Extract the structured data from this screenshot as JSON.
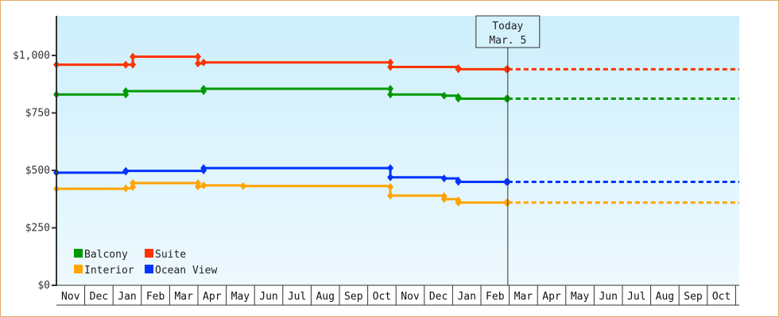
{
  "chart_data": {
    "type": "line",
    "title": "",
    "xlabel": "",
    "ylabel": "",
    "ylim": [
      0,
      1170
    ],
    "y_ticks": [
      {
        "value": 0,
        "label": "$0"
      },
      {
        "value": 250,
        "label": "$250"
      },
      {
        "value": 500,
        "label": "$500"
      },
      {
        "value": 750,
        "label": "$750"
      },
      {
        "value": 1000,
        "label": "$1,000"
      }
    ],
    "x_ticks": [
      "Nov",
      "Dec",
      "Jan",
      "Feb",
      "Mar",
      "Apr",
      "May",
      "Jun",
      "Jul",
      "Aug",
      "Sep",
      "Oct",
      "Nov",
      "Dec",
      "Jan",
      "Feb",
      "Mar",
      "Apr",
      "May",
      "Jun",
      "Jul",
      "Aug",
      "Sep",
      "Oct"
    ],
    "grid": false,
    "legend_position": "lower-left",
    "annotation": {
      "line1": "Today",
      "line2": "Mar. 5",
      "month_index": 16
    },
    "series": [
      {
        "name": "Suite",
        "color": "#ff3300",
        "points": [
          {
            "x": 0.0,
            "y": 960
          },
          {
            "x": 2.45,
            "y": 960
          },
          {
            "x": 2.45,
            "y": 960
          },
          {
            "x": 2.7,
            "y": 960
          },
          {
            "x": 2.7,
            "y": 995
          },
          {
            "x": 5.0,
            "y": 995
          },
          {
            "x": 5.0,
            "y": 965
          },
          {
            "x": 5.2,
            "y": 970
          },
          {
            "x": 11.8,
            "y": 970
          },
          {
            "x": 11.8,
            "y": 950
          },
          {
            "x": 14.2,
            "y": 945
          },
          {
            "x": 14.2,
            "y": 940
          },
          {
            "x": 15.9,
            "y": 940
          }
        ],
        "forecast_value": 940
      },
      {
        "name": "Balcony",
        "color": "#009900",
        "points": [
          {
            "x": 0.0,
            "y": 830
          },
          {
            "x": 2.45,
            "y": 830
          },
          {
            "x": 2.45,
            "y": 845
          },
          {
            "x": 5.2,
            "y": 845
          },
          {
            "x": 5.2,
            "y": 855
          },
          {
            "x": 11.8,
            "y": 855
          },
          {
            "x": 11.8,
            "y": 830
          },
          {
            "x": 13.7,
            "y": 825
          },
          {
            "x": 14.2,
            "y": 820
          },
          {
            "x": 14.2,
            "y": 812
          },
          {
            "x": 15.9,
            "y": 812
          }
        ],
        "forecast_value": 812
      },
      {
        "name": "Ocean View",
        "color": "#0033ff",
        "points": [
          {
            "x": 0.0,
            "y": 490
          },
          {
            "x": 2.45,
            "y": 495
          },
          {
            "x": 2.45,
            "y": 498
          },
          {
            "x": 5.2,
            "y": 500
          },
          {
            "x": 5.2,
            "y": 510
          },
          {
            "x": 11.8,
            "y": 510
          },
          {
            "x": 11.8,
            "y": 470
          },
          {
            "x": 13.7,
            "y": 465
          },
          {
            "x": 14.2,
            "y": 455
          },
          {
            "x": 14.2,
            "y": 450
          },
          {
            "x": 15.9,
            "y": 450
          }
        ],
        "forecast_value": 450
      },
      {
        "name": "Interior",
        "color": "#ffa500",
        "points": [
          {
            "x": 0.0,
            "y": 420
          },
          {
            "x": 2.45,
            "y": 422
          },
          {
            "x": 2.7,
            "y": 428
          },
          {
            "x": 2.7,
            "y": 445
          },
          {
            "x": 5.0,
            "y": 445
          },
          {
            "x": 5.0,
            "y": 430
          },
          {
            "x": 5.2,
            "y": 435
          },
          {
            "x": 6.6,
            "y": 432
          },
          {
            "x": 11.8,
            "y": 428
          },
          {
            "x": 11.8,
            "y": 390
          },
          {
            "x": 13.7,
            "y": 388
          },
          {
            "x": 13.7,
            "y": 375
          },
          {
            "x": 14.2,
            "y": 370
          },
          {
            "x": 14.2,
            "y": 360
          },
          {
            "x": 15.9,
            "y": 360
          }
        ],
        "forecast_value": 360
      }
    ]
  },
  "legend": [
    {
      "name": "Balcony",
      "color": "#009900"
    },
    {
      "name": "Suite",
      "color": "#ff3300"
    },
    {
      "name": "Interior",
      "color": "#ffa500"
    },
    {
      "name": "Ocean View",
      "color": "#0033ff"
    }
  ],
  "today": {
    "line1": "Today",
    "line2": "Mar. 5"
  },
  "y_axis": [
    "$0",
    "$250",
    "$500",
    "$750",
    "$1,000"
  ],
  "x_axis": [
    "Nov",
    "Dec",
    "Jan",
    "Feb",
    "Mar",
    "Apr",
    "May",
    "Jun",
    "Jul",
    "Aug",
    "Sep",
    "Oct",
    "Nov",
    "Dec",
    "Jan",
    "Feb",
    "Mar",
    "Apr",
    "May",
    "Jun",
    "Jul",
    "Aug",
    "Sep",
    "Oct"
  ]
}
